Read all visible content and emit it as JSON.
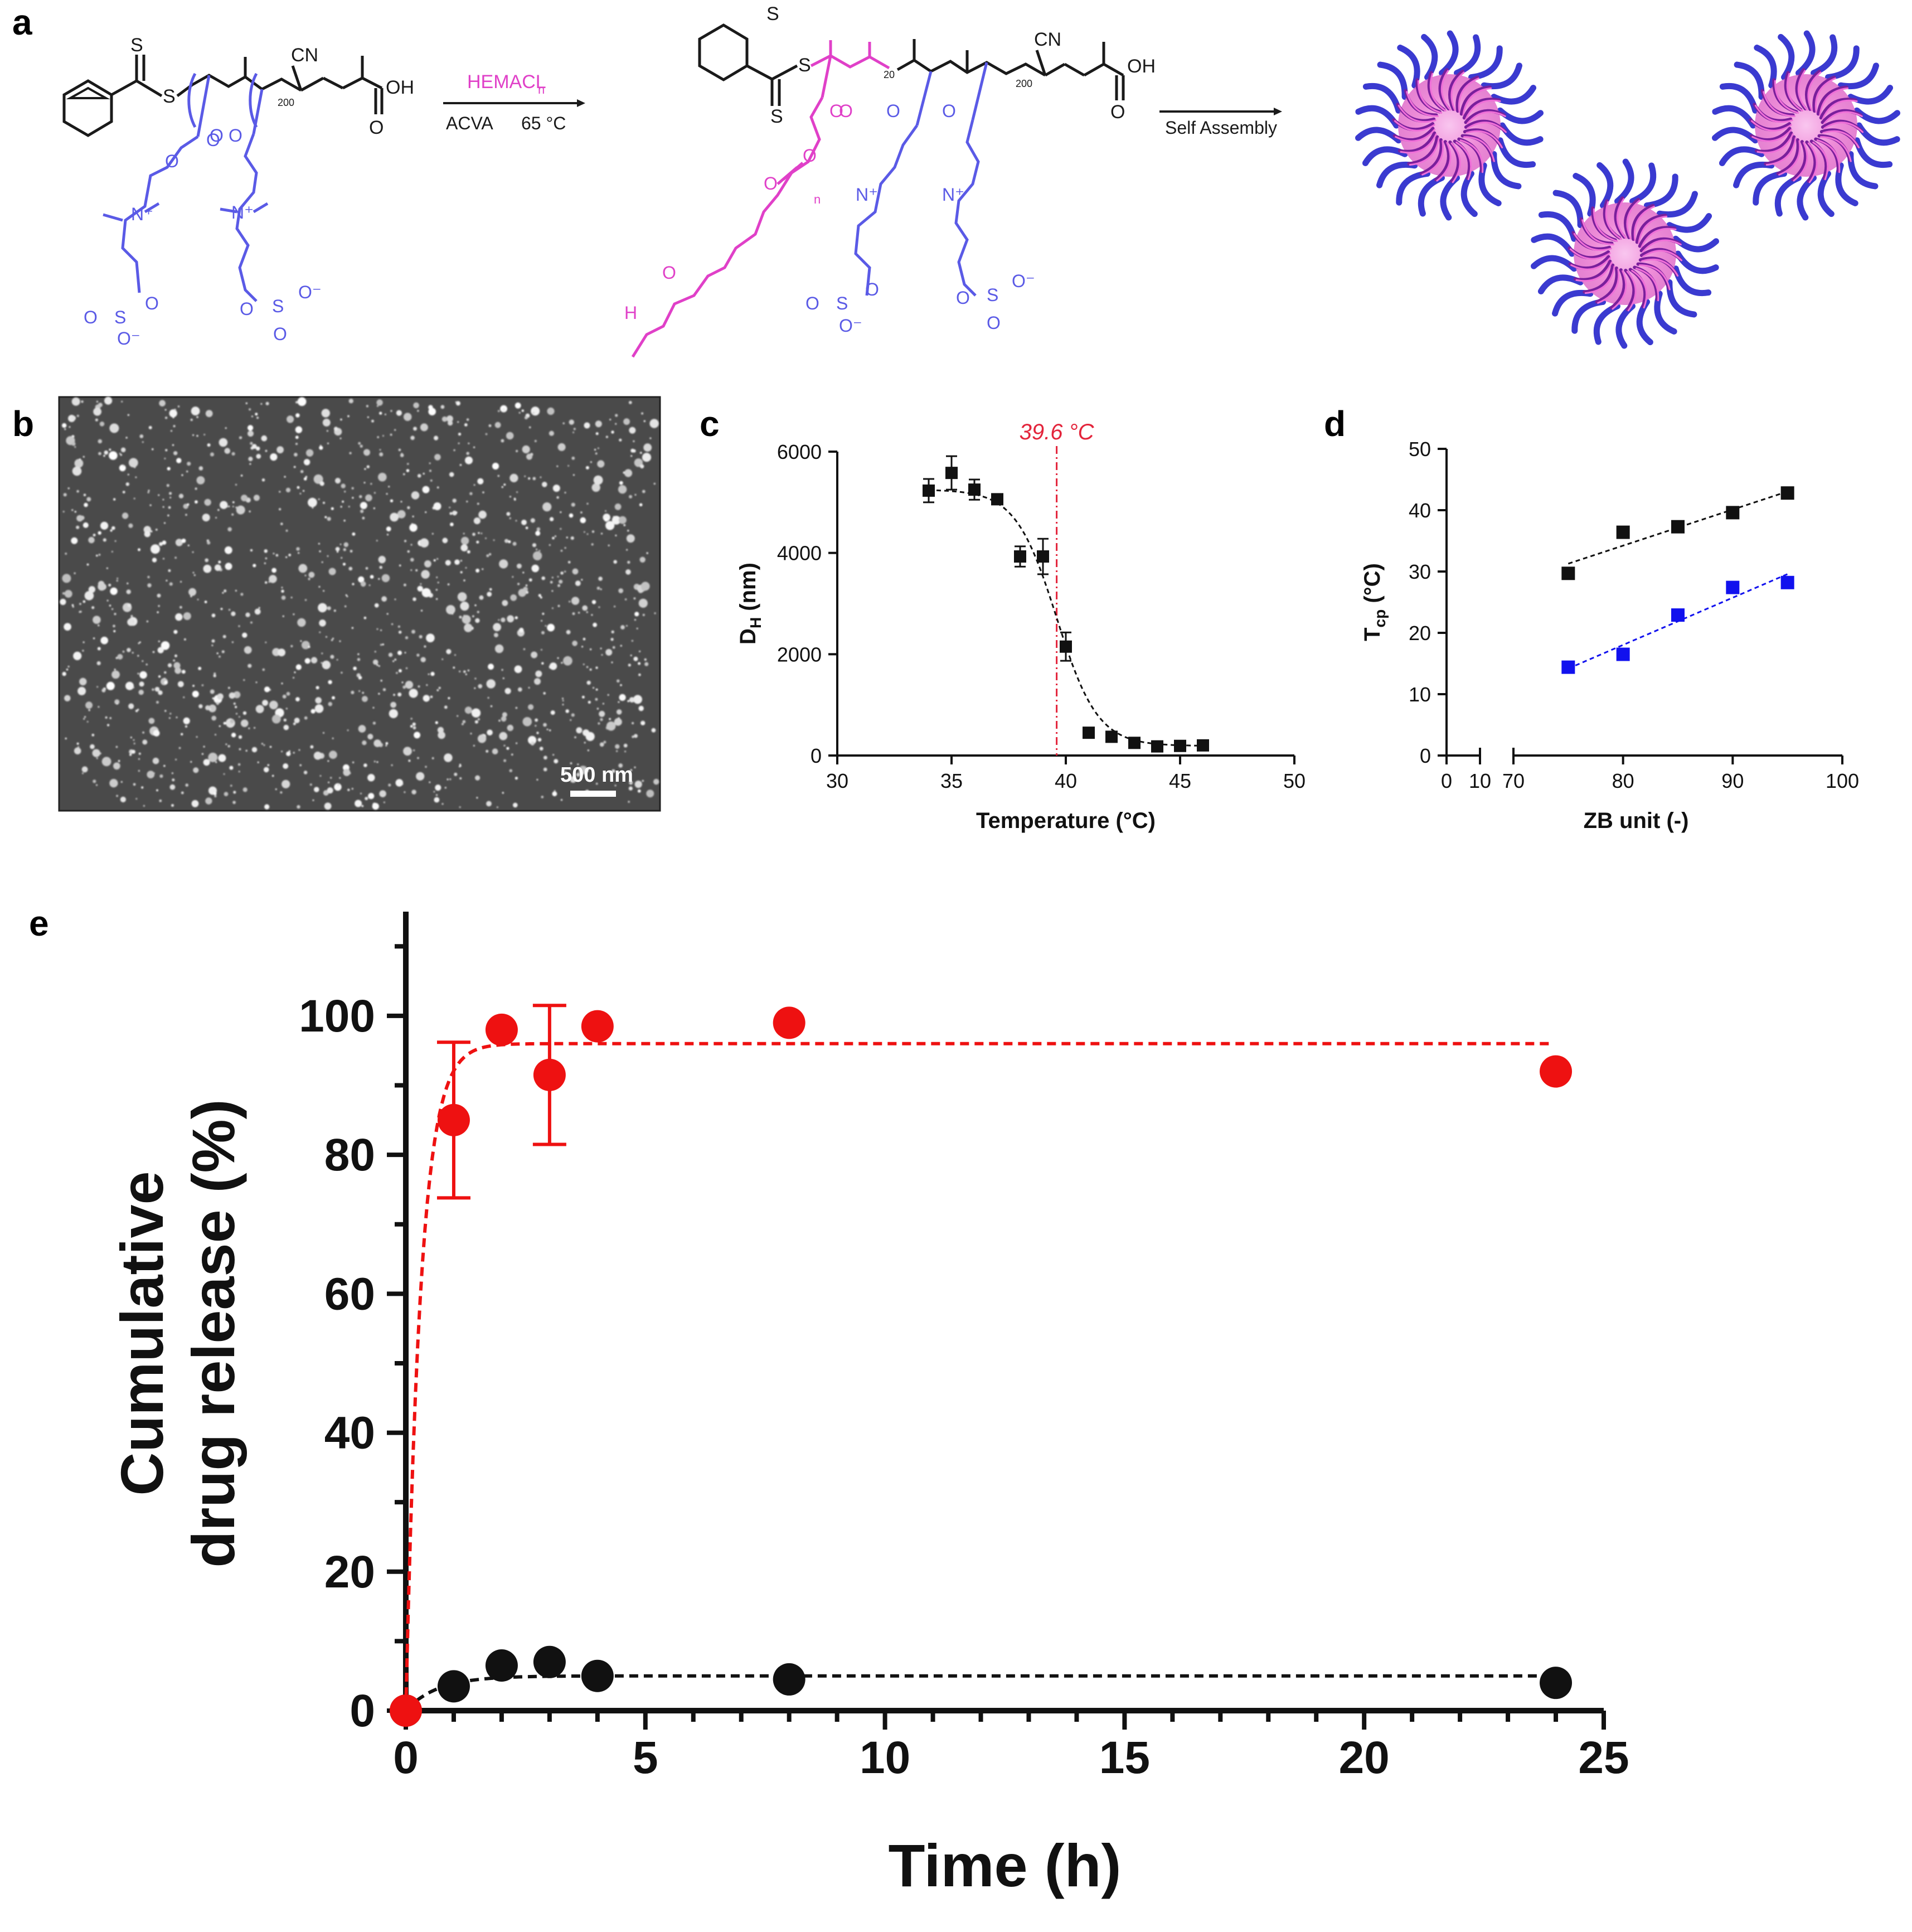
{
  "panels": {
    "a": "a",
    "b": "b",
    "c": "c",
    "d": "d",
    "e": "e"
  },
  "colors": {
    "zwitterion_blue": "#5a5ae6",
    "hemacl_magenta": "#e040c8",
    "red_series": "#ee1111",
    "black_series": "#111111",
    "blue_series": "#1111ee",
    "annotation_red": "#e3243b",
    "sem_background": "#4a4a4a"
  },
  "scheme": {
    "monomer_label": "HEMACL",
    "monomer_subscript": "n",
    "conditions_left": "ACVA",
    "conditions_right": "65 °C",
    "self_assembly": "Self Assembly",
    "dp_left": "200",
    "dp_mid_20": "20",
    "dp_mid_200": "200",
    "subscript_n": "n",
    "atoms": {
      "S": "S",
      "CN": "CN",
      "OH": "OH",
      "O": "O",
      "N_plus": "N⁺",
      "O_minus": "O⁻",
      "H": "H",
      "sulfonate_left": "O=S=O",
      "sulfate_right": "O−S=O"
    }
  },
  "sem": {
    "scale_bar": "500 nm"
  },
  "chart_data": [
    {
      "id": "c",
      "type": "scatter",
      "x": [
        34,
        35,
        36,
        37,
        38,
        39,
        40,
        41,
        42,
        43,
        44,
        45,
        46
      ],
      "y": [
        5230,
        5580,
        5250,
        5060,
        3930,
        3930,
        2150,
        450,
        370,
        250,
        180,
        190,
        200
      ],
      "error": [
        230,
        330,
        200,
        90,
        200,
        350,
        280,
        60,
        60,
        50,
        40,
        40,
        40
      ],
      "fit": "sigmoid",
      "xlabel": "Temperature (°C)",
      "ylabel": "D",
      "ylabel_sub": "H",
      "ylabel_unit": "(nm)",
      "xlim": [
        30,
        50
      ],
      "ylim": [
        0,
        6000
      ],
      "xticks": [
        "30",
        "35",
        "40",
        "45",
        "50"
      ],
      "yticks": [
        "0",
        "2000",
        "4000",
        "6000"
      ],
      "annotation": "39.6 °C",
      "annotation_x": 39.6
    },
    {
      "id": "d",
      "type": "scatter",
      "series": [
        {
          "name": "black",
          "x": [
            75,
            80,
            85,
            90,
            95
          ],
          "y": [
            29.7,
            36.4,
            37.3,
            39.6,
            42.8
          ]
        },
        {
          "name": "blue",
          "x": [
            75,
            80,
            85,
            90,
            95
          ],
          "y": [
            14.4,
            16.5,
            22.9,
            27.4,
            28.2
          ]
        }
      ],
      "xlabel": "ZB unit (-)",
      "ylabel": "T",
      "ylabel_sub": "cp",
      "ylabel_unit": "(°C)",
      "xlim_segments": [
        [
          0,
          10
        ],
        [
          70,
          100
        ]
      ],
      "ylim": [
        0,
        50
      ],
      "xticks": [
        "0",
        "10",
        "70",
        "80",
        "90",
        "100"
      ],
      "yticks": [
        "0",
        "10",
        "20",
        "30",
        "40",
        "50"
      ]
    },
    {
      "id": "e",
      "type": "scatter",
      "series": [
        {
          "name": "red",
          "x": [
            0,
            1,
            2,
            3,
            4,
            8,
            24
          ],
          "y": [
            0,
            85,
            98,
            91.5,
            98.5,
            99,
            92
          ],
          "error": [
            0,
            11.2,
            0,
            10,
            0,
            0,
            0
          ]
        },
        {
          "name": "black",
          "x": [
            0,
            1,
            2,
            3,
            4,
            8,
            24
          ],
          "y": [
            0,
            3.5,
            6.5,
            7,
            5,
            4.5,
            4
          ],
          "error": [
            0,
            0,
            0,
            0,
            0,
            0,
            0
          ]
        }
      ],
      "fits": [
        {
          "name": "red",
          "plateau": 96,
          "k": 3.2
        },
        {
          "name": "black",
          "plateau": 5,
          "k": 1.5
        }
      ],
      "xlabel": "Time (h)",
      "ylabel_line1": "Cumulative",
      "ylabel_line2": "drug release (%)",
      "xlim": [
        0,
        25
      ],
      "ylim": [
        0,
        115
      ],
      "xticks": [
        "0",
        "5",
        "10",
        "15",
        "20",
        "25"
      ],
      "yticks": [
        "0",
        "20",
        "40",
        "60",
        "80",
        "100"
      ]
    }
  ]
}
